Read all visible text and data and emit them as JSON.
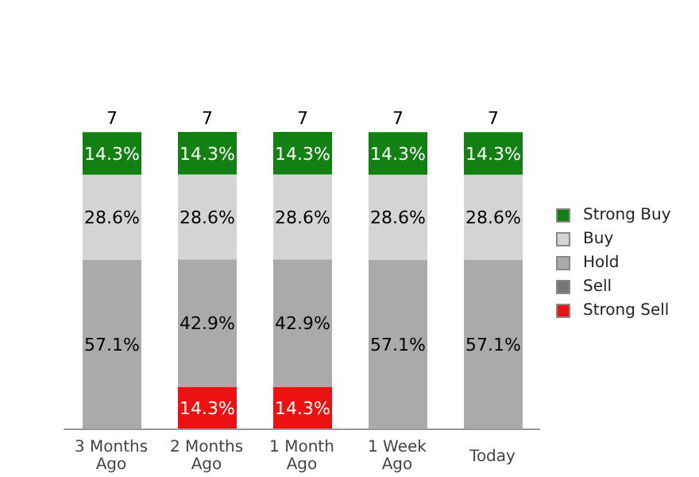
{
  "chart_data": {
    "type": "bar",
    "stacked": true,
    "categories": [
      "3 Months Ago",
      "2 Months Ago",
      "1 Month Ago",
      "1 Week Ago",
      "Today"
    ],
    "series": [
      {
        "name": "Strong Sell",
        "color": "#ee1111",
        "values": [
          null,
          14.3,
          14.3,
          null,
          null
        ],
        "value_labels": [
          null,
          "14.3%",
          "14.3%",
          null,
          null
        ]
      },
      {
        "name": "Sell",
        "color": "#777777",
        "values": [
          null,
          null,
          null,
          null,
          null
        ],
        "value_labels": [
          null,
          null,
          null,
          null,
          null
        ]
      },
      {
        "name": "Hold",
        "color": "#aaaaaa",
        "values": [
          57.1,
          42.9,
          42.9,
          57.1,
          57.1
        ],
        "value_labels": [
          "57.1%",
          "42.9%",
          "42.9%",
          "57.1%",
          "57.1%"
        ]
      },
      {
        "name": "Buy",
        "color": "#d4d4d4",
        "values": [
          28.6,
          28.6,
          28.6,
          28.6,
          28.6
        ],
        "value_labels": [
          "28.6%",
          "28.6%",
          "28.6%",
          "28.6%",
          "28.6%"
        ]
      },
      {
        "name": "Strong Buy",
        "color": "#128012",
        "values": [
          14.3,
          14.3,
          14.3,
          14.3,
          14.3
        ],
        "value_labels": [
          "14.3%",
          "14.3%",
          "14.3%",
          "14.3%",
          "14.3%"
        ]
      }
    ],
    "annotations": [
      "7",
      "7",
      "7",
      "7",
      "7"
    ],
    "legend": "right",
    "grid": false
  }
}
